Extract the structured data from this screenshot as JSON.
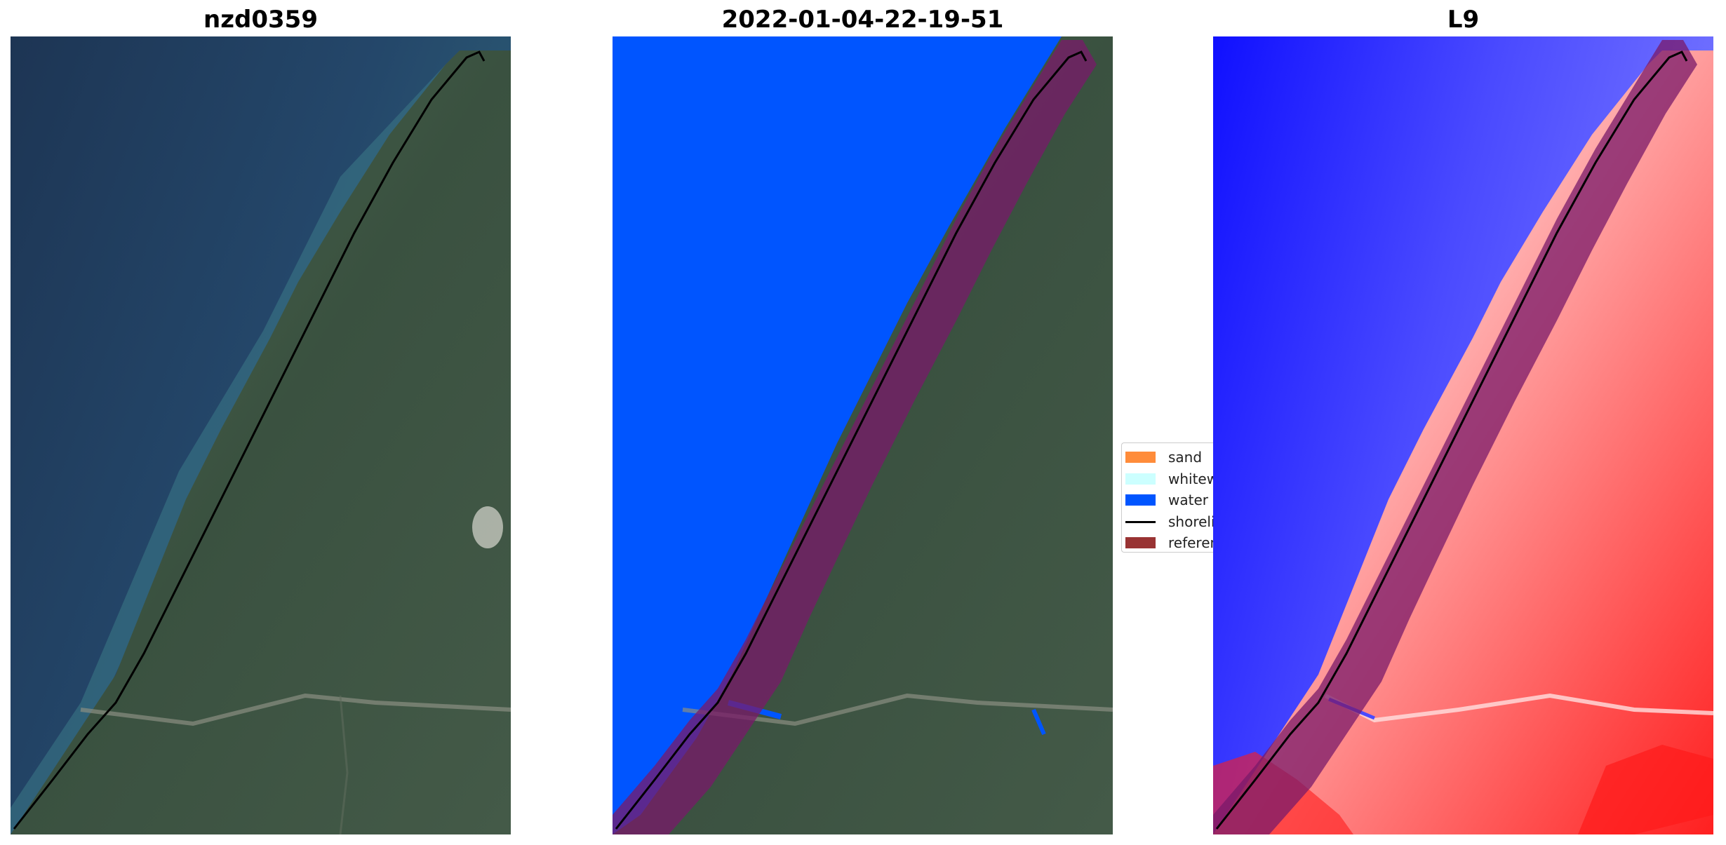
{
  "panels": [
    {
      "title": "nzd0359"
    },
    {
      "title": "2022-01-04-22-19-51"
    },
    {
      "title": "L9"
    }
  ],
  "legend": {
    "items": [
      {
        "label": "sand",
        "color": "#ff8c3a"
      },
      {
        "label": "whitewater",
        "color": "#ccffff"
      },
      {
        "label": "water",
        "color": "#0055ff"
      },
      {
        "label": "shoreline",
        "color": "#000000"
      },
      {
        "label": "reference",
        "color": "#993333"
      }
    ]
  },
  "colors": {
    "ocean_dark": "#1f3a5a",
    "ocean_near": "#3c7287",
    "forest": "#3d5440",
    "water_class": "#0055ff",
    "buffer": "#6a1a8f",
    "index_blue": "#2222ff",
    "index_red": "#ff2a2a"
  }
}
